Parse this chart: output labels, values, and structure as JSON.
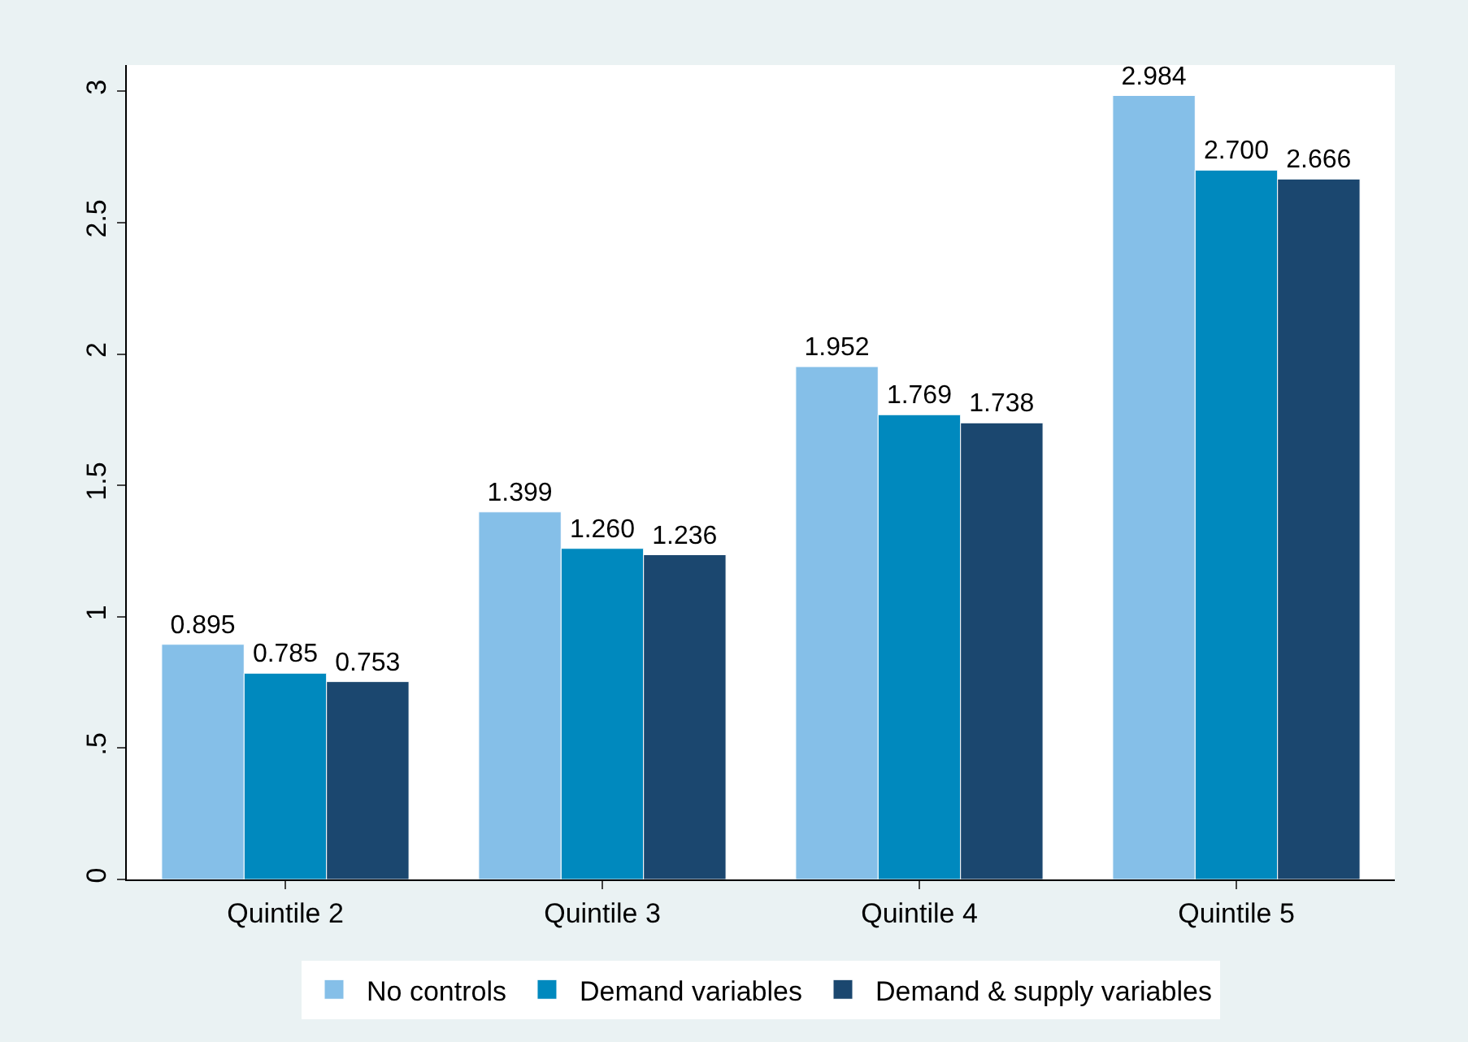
{
  "chart_data": {
    "type": "bar",
    "categories": [
      "Quintile 2",
      "Quintile 3",
      "Quintile 4",
      "Quintile 5"
    ],
    "series": [
      {
        "name": "No controls",
        "color": "#85bfe8",
        "values": [
          0.895,
          1.399,
          1.952,
          2.984
        ],
        "value_labels": [
          "0.895",
          "1.399",
          "1.952",
          "2.984"
        ]
      },
      {
        "name": "Demand variables",
        "color": "#0089be",
        "values": [
          0.785,
          1.26,
          1.769,
          2.7
        ],
        "value_labels": [
          "0.785",
          "1.260",
          "1.769",
          "2.700"
        ]
      },
      {
        "name": "Demand & supply variables",
        "color": "#1b476f",
        "values": [
          0.753,
          1.236,
          1.738,
          2.666
        ],
        "value_labels": [
          "0.753",
          "1.236",
          "1.738",
          "2.666"
        ]
      }
    ],
    "ylim": [
      0,
      3.1
    ],
    "yticks": [
      0,
      {
        "value": 0.5,
        "label": ".5"
      },
      1,
      {
        "value": 1.5,
        "label": "1.5"
      },
      2,
      {
        "value": 2.5,
        "label": "2.5"
      },
      3
    ],
    "legend": "bottom"
  }
}
